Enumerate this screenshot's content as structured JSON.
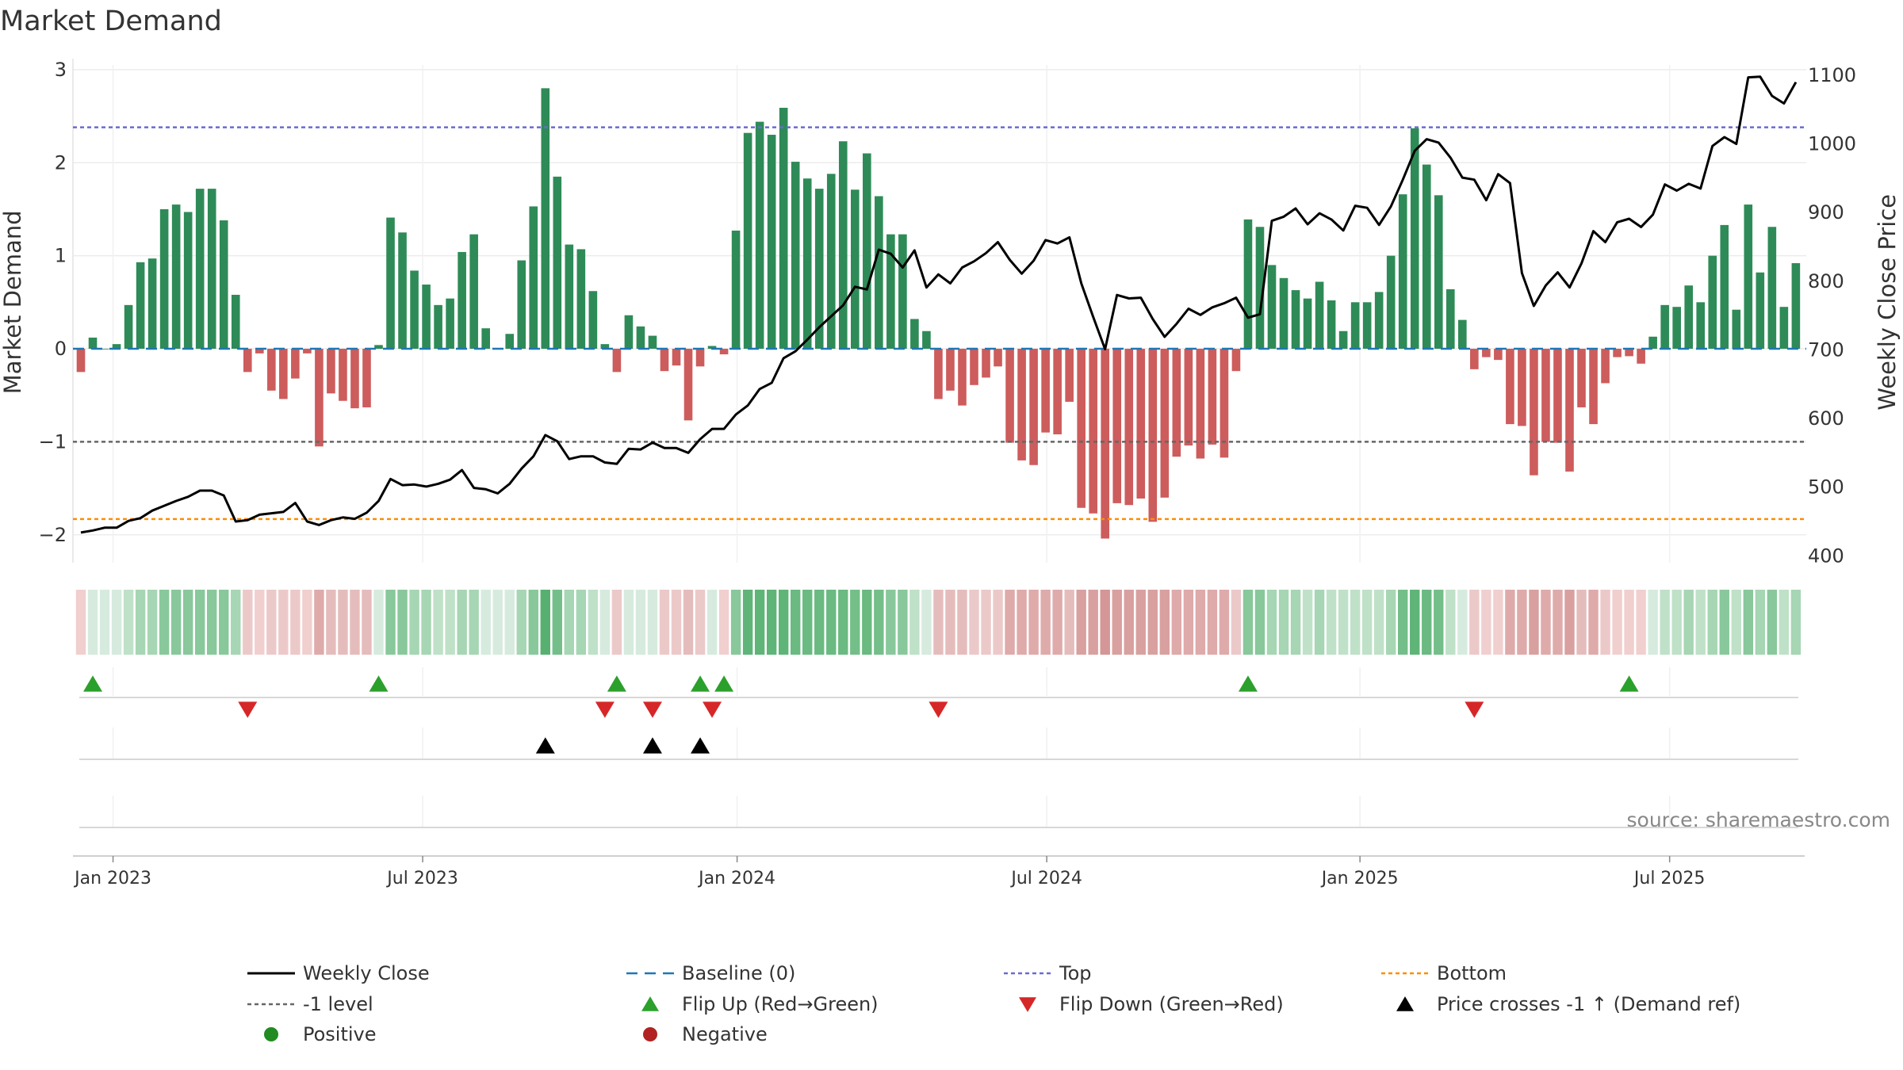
{
  "chart_data": {
    "type": "bar",
    "title": "Market Demand",
    "ylabel": "Market Demand",
    "y2label": "Weekly Close Price",
    "source": "source: sharemaestro.com",
    "ylim": [
      -2.3,
      3.05
    ],
    "y2lim": [
      390,
      1115
    ],
    "yticks": [
      {
        "v": -2,
        "label": "−2"
      },
      {
        "v": -1,
        "label": "−1"
      },
      {
        "v": 0,
        "label": "0"
      },
      {
        "v": 1,
        "label": "1"
      },
      {
        "v": 2,
        "label": "2"
      },
      {
        "v": 3,
        "label": "3"
      }
    ],
    "y2ticks": [
      {
        "v": 400,
        "label": "400"
      },
      {
        "v": 500,
        "label": "500"
      },
      {
        "v": 600,
        "label": "600"
      },
      {
        "v": 700,
        "label": "700"
      },
      {
        "v": 800,
        "label": "800"
      },
      {
        "v": 900,
        "label": "900"
      },
      {
        "v": 1000,
        "label": "1000"
      },
      {
        "v": 1100,
        "label": "1100"
      }
    ],
    "xticks": [
      {
        "week": 2.7,
        "label": "Jan 2023"
      },
      {
        "week": 28.7,
        "label": "Jul 2023"
      },
      {
        "week": 55.1,
        "label": "Jan 2024"
      },
      {
        "week": 81.1,
        "label": "Jul 2024"
      },
      {
        "week": 107.4,
        "label": "Jan 2025"
      },
      {
        "week": 133.4,
        "label": "Jul 2025"
      }
    ],
    "reference_lines": {
      "top": 2.38,
      "minus_one": -1,
      "bottom": -1.83,
      "baseline": 0
    },
    "colors": {
      "positive_bar": "#2e8b57",
      "negative_bar": "#cd5c5c",
      "close_line": "#000000",
      "baseline": "#1f77b4",
      "top_line": "#6a6ad0",
      "minus_one_line": "#666666",
      "bottom_line": "#ff8c00",
      "flip_up": "#2ca02c",
      "flip_down": "#d62728",
      "cross_marker": "#000000",
      "positive_dot": "#228b22",
      "negative_dot": "#b22222"
    },
    "demand": [
      -0.25,
      0.12,
      0.0,
      0.05,
      0.47,
      0.93,
      0.97,
      1.5,
      1.55,
      1.47,
      1.72,
      1.72,
      1.38,
      0.58,
      -0.25,
      -0.05,
      -0.45,
      -0.54,
      -0.32,
      -0.05,
      -1.05,
      -0.48,
      -0.56,
      -0.64,
      -0.63,
      0.04,
      1.41,
      1.25,
      0.84,
      0.69,
      0.47,
      0.54,
      1.04,
      1.23,
      0.22,
      0.0,
      0.16,
      0.95,
      1.53,
      2.8,
      1.85,
      1.12,
      1.07,
      0.62,
      0.05,
      -0.25,
      0.36,
      0.24,
      0.14,
      -0.24,
      -0.18,
      -0.77,
      -0.19,
      0.03,
      -0.06,
      1.27,
      2.32,
      2.44,
      2.3,
      2.59,
      2.01,
      1.83,
      1.72,
      1.88,
      2.23,
      1.71,
      2.1,
      1.64,
      1.23,
      1.23,
      0.32,
      0.19,
      -0.54,
      -0.45,
      -0.61,
      -0.39,
      -0.31,
      -0.19,
      -1.01,
      -1.2,
      -1.25,
      -0.9,
      -0.92,
      -0.57,
      -1.71,
      -1.77,
      -2.04,
      -1.66,
      -1.68,
      -1.61,
      -1.86,
      -1.6,
      -1.16,
      -1.04,
      -1.18,
      -1.03,
      -1.17,
      -0.24,
      1.39,
      1.31,
      0.9,
      0.76,
      0.63,
      0.54,
      0.72,
      0.52,
      0.19,
      0.5,
      0.5,
      0.61,
      1.0,
      1.66,
      2.37,
      1.98,
      1.65,
      0.64,
      0.31,
      -0.22,
      -0.09,
      -0.12,
      -0.81,
      -0.83,
      -1.36,
      -1.0,
      -1.01,
      -1.32,
      -0.63,
      -0.81,
      -0.37,
      -0.09,
      -0.08,
      -0.16,
      0.13,
      0.47,
      0.45,
      0.68,
      0.5,
      1.0,
      1.33,
      0.42,
      1.55,
      0.82,
      1.31,
      0.45,
      0.92
    ],
    "close": [
      434,
      437,
      441,
      441,
      451,
      455,
      466,
      473,
      480,
      486,
      495,
      495,
      488,
      450,
      452,
      460,
      462,
      464,
      477,
      450,
      445,
      452,
      456,
      454,
      463,
      480,
      512,
      503,
      504,
      501,
      505,
      511,
      525,
      499,
      497,
      491,
      505,
      527,
      545,
      576,
      567,
      541,
      545,
      545,
      536,
      534,
      556,
      555,
      565,
      557,
      557,
      550,
      570,
      585,
      585,
      606,
      619,
      643,
      652,
      688,
      698,
      715,
      733,
      749,
      765,
      792,
      788,
      846,
      840,
      820,
      845,
      791,
      810,
      797,
      820,
      829,
      841,
      857,
      831,
      811,
      830,
      860,
      855,
      864,
      797,
      748,
      701,
      780,
      775,
      776,
      745,
      719,
      738,
      760,
      751,
      762,
      768,
      776,
      747,
      752,
      888,
      894,
      906,
      883,
      899,
      890,
      874,
      910,
      907,
      882,
      909,
      948,
      990,
      1007,
      1002,
      980,
      951,
      948,
      918,
      956,
      943,
      812,
      764,
      794,
      813,
      791,
      826,
      873,
      857,
      886,
      891,
      879,
      897,
      941,
      932,
      942,
      935,
      997,
      1010,
      1000,
      1097,
      1098,
      1070,
      1059,
      1090
    ],
    "strip_colors": [
      "#f1cfcf",
      "#d6ebde",
      "#d6ebde",
      "#d6ebde",
      "#bfe1c8",
      "#a6d6b3",
      "#a6d6b3",
      "#88c89b",
      "#88c89b",
      "#88c89b",
      "#88c89b",
      "#88c89b",
      "#88c89b",
      "#a6d6b3",
      "#ecc9c9",
      "#f1cfcf",
      "#ecc9c9",
      "#ecc9c9",
      "#ecc9c9",
      "#f1cfcf",
      "#dfaaaa",
      "#e5bcbc",
      "#e5bcbc",
      "#e5bcbc",
      "#e5bcbc",
      "#d6ebde",
      "#88c89b",
      "#88c89b",
      "#a6d6b3",
      "#a6d6b3",
      "#bfe1c8",
      "#bfe1c8",
      "#a6d6b3",
      "#a6d6b3",
      "#d6ebde",
      "#d6ebde",
      "#d6ebde",
      "#a6d6b3",
      "#88c89b",
      "#57b06f",
      "#74bf89",
      "#a6d6b3",
      "#a6d6b3",
      "#bfe1c8",
      "#d6ebde",
      "#ecc9c9",
      "#d6ebde",
      "#d6ebde",
      "#d6ebde",
      "#ecc9c9",
      "#ecc9c9",
      "#e5bcbc",
      "#ecc9c9",
      "#d6ebde",
      "#f1cfcf",
      "#88c89b",
      "#5fb477",
      "#5fb477",
      "#5fb477",
      "#5fb477",
      "#6aba81",
      "#6aba81",
      "#6aba81",
      "#6aba81",
      "#6aba81",
      "#74bf89",
      "#6aba81",
      "#74bf89",
      "#88c89b",
      "#88c89b",
      "#bfe1c8",
      "#d6ebde",
      "#e5bcbc",
      "#e5bcbc",
      "#e5bcbc",
      "#ecc9c9",
      "#ecc9c9",
      "#ecc9c9",
      "#dfaaaa",
      "#dfaaaa",
      "#dfaaaa",
      "#dfaaaa",
      "#dfaaaa",
      "#e5bcbc",
      "#d9a0a0",
      "#d9a0a0",
      "#d49696",
      "#d9a0a0",
      "#d9a0a0",
      "#d9a0a0",
      "#d9a0a0",
      "#d9a0a0",
      "#dfaaaa",
      "#dfaaaa",
      "#dfaaaa",
      "#dfaaaa",
      "#dfaaaa",
      "#ecc9c9",
      "#88c89b",
      "#88c89b",
      "#a6d6b3",
      "#a6d6b3",
      "#a6d6b3",
      "#bfe1c8",
      "#a6d6b3",
      "#bfe1c8",
      "#bfe1c8",
      "#bfe1c8",
      "#bfe1c8",
      "#bfe1c8",
      "#a6d6b3",
      "#74bf89",
      "#5fb477",
      "#6aba81",
      "#74bf89",
      "#bfe1c8",
      "#d6ebde",
      "#ecc9c9",
      "#f1cfcf",
      "#f1cfcf",
      "#dfaaaa",
      "#dfaaaa",
      "#d9a0a0",
      "#dfaaaa",
      "#dfaaaa",
      "#d9a0a0",
      "#e5bcbc",
      "#dfaaaa",
      "#ecc9c9",
      "#f1cfcf",
      "#f1cfcf",
      "#f1cfcf",
      "#d6ebde",
      "#bfe1c8",
      "#bfe1c8",
      "#a6d6b3",
      "#bfe1c8",
      "#a6d6b3",
      "#88c89b",
      "#bfe1c8",
      "#88c89b",
      "#a6d6b3",
      "#88c89b",
      "#bfe1c8",
      "#a6d6b3"
    ],
    "flip_up_weeks": [
      1,
      25,
      45,
      52,
      54,
      98,
      130
    ],
    "flip_down_weeks": [
      14,
      44,
      48,
      53,
      72,
      117
    ],
    "price_cross_weeks": [
      39,
      48,
      52
    ],
    "legend": [
      {
        "key": "close",
        "label": "Weekly Close"
      },
      {
        "key": "baseline",
        "label": "Baseline (0)"
      },
      {
        "key": "top",
        "label": "Top"
      },
      {
        "key": "bottom",
        "label": "Bottom"
      },
      {
        "key": "minus1",
        "label": "-1 level"
      },
      {
        "key": "flipup",
        "label": "Flip Up (Red→Green)"
      },
      {
        "key": "flipdown",
        "label": "Flip Down (Green→Red)"
      },
      {
        "key": "cross",
        "label": "Price crosses -1 ↑ (Demand ref)"
      },
      {
        "key": "positive",
        "label": "Positive"
      },
      {
        "key": "negative",
        "label": "Negative"
      }
    ]
  }
}
